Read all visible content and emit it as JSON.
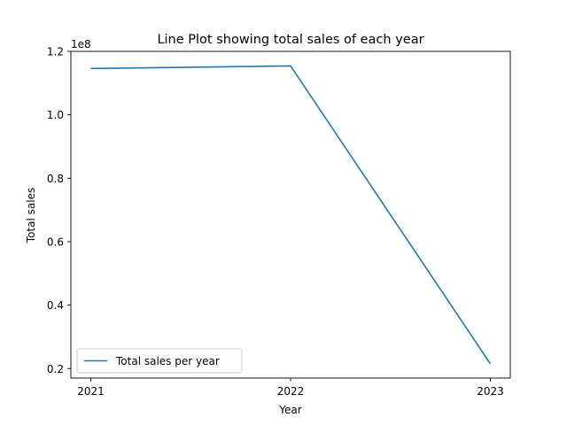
{
  "chart_data": {
    "type": "line",
    "title": "Line Plot showing total sales of each year",
    "xlabel": "Year",
    "ylabel": "Total sales",
    "y_offset_label": "1e8",
    "x": [
      2021,
      2022,
      2023
    ],
    "x_tick_labels": [
      "2021",
      "2022",
      "2023"
    ],
    "y_ticks": [
      0.2,
      0.4,
      0.6,
      0.8,
      1.0,
      1.2
    ],
    "y_tick_labels": [
      "0.2",
      "0.4",
      "0.6",
      "0.8",
      "1.0",
      "1.2"
    ],
    "y_scale": 100000000,
    "ylim": [
      17000000,
      120000000
    ],
    "grid": false,
    "legend_position": "lower left",
    "series": [
      {
        "name": "Total sales per year",
        "color": "#1f77b4",
        "values": [
          114600000,
          115400000,
          21500000
        ]
      }
    ]
  }
}
